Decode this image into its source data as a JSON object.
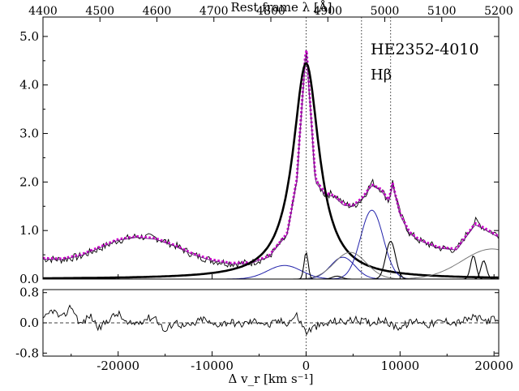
{
  "chart_data": [
    {
      "type": "line",
      "panel": "main",
      "object_label": "HE2352-4010",
      "line_label": "Hβ",
      "top_axis": {
        "label": "Rest frame λ [Å]",
        "ticks": [
          4400,
          4500,
          4600,
          4700,
          4800,
          4900,
          5000,
          5100,
          5200
        ],
        "range": [
          4400,
          5200
        ]
      },
      "xlim": [
        -28000,
        20500
      ],
      "ylim": [
        0,
        5.4
      ],
      "y_ticks": [
        0.0,
        1.0,
        2.0,
        3.0,
        4.0,
        5.0
      ],
      "y_tick_labels": [
        "0.0",
        "1.0",
        "2.0",
        "3.0",
        "4.0",
        "5.0"
      ],
      "vertical_markers_kms": [
        0,
        5900,
        9000
      ],
      "observed_noise_amplitude": 0.08,
      "series": [
        {
          "name": "observed spectrum",
          "color": "#000000",
          "style": "thin",
          "x": [
            -28000,
            -26000,
            -24000,
            -22000,
            -20000,
            -18000,
            -16000,
            -14000,
            -12000,
            -10000,
            -8000,
            -6000,
            -4000,
            -2000,
            -1000,
            0,
            1000,
            2000,
            3000,
            4000,
            5000,
            6000,
            7000,
            8000,
            8800,
            9200,
            10000,
            11000,
            12000,
            14000,
            16000,
            18000,
            19000,
            20500
          ],
          "y": [
            0.42,
            0.4,
            0.47,
            0.63,
            0.8,
            0.88,
            0.85,
            0.7,
            0.5,
            0.38,
            0.32,
            0.33,
            0.45,
            0.9,
            2.0,
            4.75,
            2.0,
            1.75,
            1.75,
            1.55,
            1.5,
            1.65,
            2.0,
            1.85,
            1.6,
            2.0,
            1.35,
            0.95,
            0.8,
            0.65,
            0.6,
            1.2,
            1.05,
            0.9
          ]
        },
        {
          "name": "total fit",
          "color": "#cc00cc",
          "style": "dotted",
          "x": [
            -28000,
            -26000,
            -24000,
            -22000,
            -20000,
            -18000,
            -16000,
            -14000,
            -12000,
            -10000,
            -8000,
            -6000,
            -4000,
            -2000,
            -1000,
            0,
            1000,
            2000,
            3000,
            4000,
            5000,
            6000,
            7000,
            8000,
            8800,
            9200,
            10000,
            11000,
            12000,
            14000,
            16000,
            18000,
            19000,
            20500
          ],
          "y": [
            0.43,
            0.42,
            0.5,
            0.66,
            0.82,
            0.88,
            0.84,
            0.7,
            0.52,
            0.4,
            0.33,
            0.34,
            0.47,
            0.95,
            2.05,
            4.85,
            2.05,
            1.78,
            1.72,
            1.55,
            1.52,
            1.68,
            1.95,
            1.85,
            1.62,
            1.98,
            1.35,
            0.97,
            0.82,
            0.66,
            0.62,
            1.15,
            1.05,
            0.88
          ]
        },
        {
          "name": "model fit",
          "color": "#7a1f8a",
          "style": "solid",
          "x": [
            -28000,
            -26000,
            -24000,
            -22000,
            -20000,
            -18000,
            -16000,
            -14000,
            -12000,
            -10000,
            -8000,
            -6000,
            -4000,
            -2000,
            -1000,
            0,
            1000,
            2000,
            3000,
            4000,
            5000,
            6000,
            7000,
            8000,
            8800,
            9200,
            10000,
            11000,
            12000,
            14000,
            16000,
            18000,
            19000,
            20500
          ],
          "y": [
            0.41,
            0.4,
            0.48,
            0.64,
            0.8,
            0.86,
            0.82,
            0.68,
            0.5,
            0.38,
            0.31,
            0.32,
            0.45,
            0.92,
            2.0,
            4.78,
            2.0,
            1.74,
            1.7,
            1.52,
            1.5,
            1.66,
            1.93,
            1.82,
            1.6,
            1.95,
            1.32,
            0.94,
            0.8,
            0.64,
            0.6,
            1.12,
            1.02,
            0.86
          ]
        },
        {
          "name": "broad Hβ component",
          "color": "#000000",
          "style": "thick",
          "lorentzian": {
            "center": 0,
            "amplitude": 4.45,
            "hwhm": 1700
          }
        },
        {
          "name": "blue Gaussian 1",
          "color": "#2222aa",
          "style": "solid",
          "gaussian": {
            "center": -2300,
            "amplitude": 0.28,
            "sigma": 1800
          }
        },
        {
          "name": "blue Gaussian 2 (Fe II)",
          "color": "#2222aa",
          "style": "solid",
          "gaussian": {
            "center": 3900,
            "amplitude": 0.45,
            "sigma": 1300
          }
        },
        {
          "name": "blue Gaussian 3 (Fe II)",
          "color": "#2222aa",
          "style": "solid",
          "gaussian": {
            "center": 7000,
            "amplitude": 1.42,
            "sigma": 1200
          }
        },
        {
          "name": "gray component 1",
          "color": "#777777",
          "style": "solid",
          "gaussian": {
            "center": 4700,
            "amplitude": 0.55,
            "sigma": 1700
          }
        },
        {
          "name": "gray component 2",
          "color": "#777777",
          "style": "solid",
          "gaussian": {
            "center": 19800,
            "amplitude": 0.62,
            "sigma": 3200
          }
        },
        {
          "name": "narrow lines",
          "color": "#000000",
          "style": "solid",
          "gaussians": [
            {
              "center": 0,
              "amplitude": 0.55,
              "sigma": 220
            },
            {
              "center": 3300,
              "amplitude": 0.06,
              "sigma": 500
            },
            {
              "center": 9000,
              "amplitude": 0.78,
              "sigma": 520
            },
            {
              "center": 17800,
              "amplitude": 0.48,
              "sigma": 300
            },
            {
              "center": 18900,
              "amplitude": 0.38,
              "sigma": 300
            }
          ]
        }
      ]
    },
    {
      "type": "line",
      "panel": "residual",
      "xlabel": "Δ v_r [km s⁻¹]",
      "xlim": [
        -28000,
        20500
      ],
      "ylim": [
        -0.88,
        0.88
      ],
      "x_ticks": [
        -20000,
        -10000,
        0,
        10000,
        20000
      ],
      "x_tick_labels": [
        "-20000",
        "-10000",
        "0",
        "10000",
        "20000"
      ],
      "y_ticks": [
        0.8,
        0.0,
        -0.8
      ],
      "y_tick_labels": [
        "0.8",
        "0.0",
        "-0.8"
      ],
      "zero_line": 0,
      "vertical_marker_kms": 0,
      "series": [
        {
          "name": "residuals",
          "color": "#000000",
          "x": [
            -28000,
            -27000,
            -26000,
            -25000,
            -24000,
            -23000,
            -22000,
            -21000,
            -20000,
            -19000,
            -18000,
            -17000,
            -16000,
            -15000,
            -14000,
            -13000,
            -12000,
            -11000,
            -10000,
            -9000,
            -8000,
            -7000,
            -6000,
            -5000,
            -4000,
            -3000,
            -2000,
            -1000,
            0,
            1000,
            2000,
            3000,
            4000,
            5000,
            6000,
            7000,
            8000,
            9000,
            10000,
            11000,
            12000,
            13000,
            14000,
            15000,
            16000,
            17000,
            18000,
            19000,
            20000,
            20500
          ],
          "y": [
            0.05,
            0.35,
            0.1,
            0.45,
            -0.05,
            0.2,
            -0.15,
            0.1,
            0.25,
            -0.05,
            0.0,
            0.12,
            0.15,
            -0.25,
            0.05,
            -0.1,
            -0.05,
            0.12,
            -0.05,
            -0.02,
            0.03,
            -0.05,
            0.02,
            0.06,
            -0.08,
            0.05,
            0.0,
            0.2,
            -0.25,
            -0.1,
            -0.05,
            0.05,
            0.02,
            0.08,
            0.05,
            0.0,
            0.1,
            -0.05,
            -0.12,
            0.0,
            0.06,
            -0.05,
            0.02,
            0.05,
            0.0,
            0.08,
            0.15,
            0.05,
            0.1,
            0.0
          ]
        }
      ]
    }
  ]
}
